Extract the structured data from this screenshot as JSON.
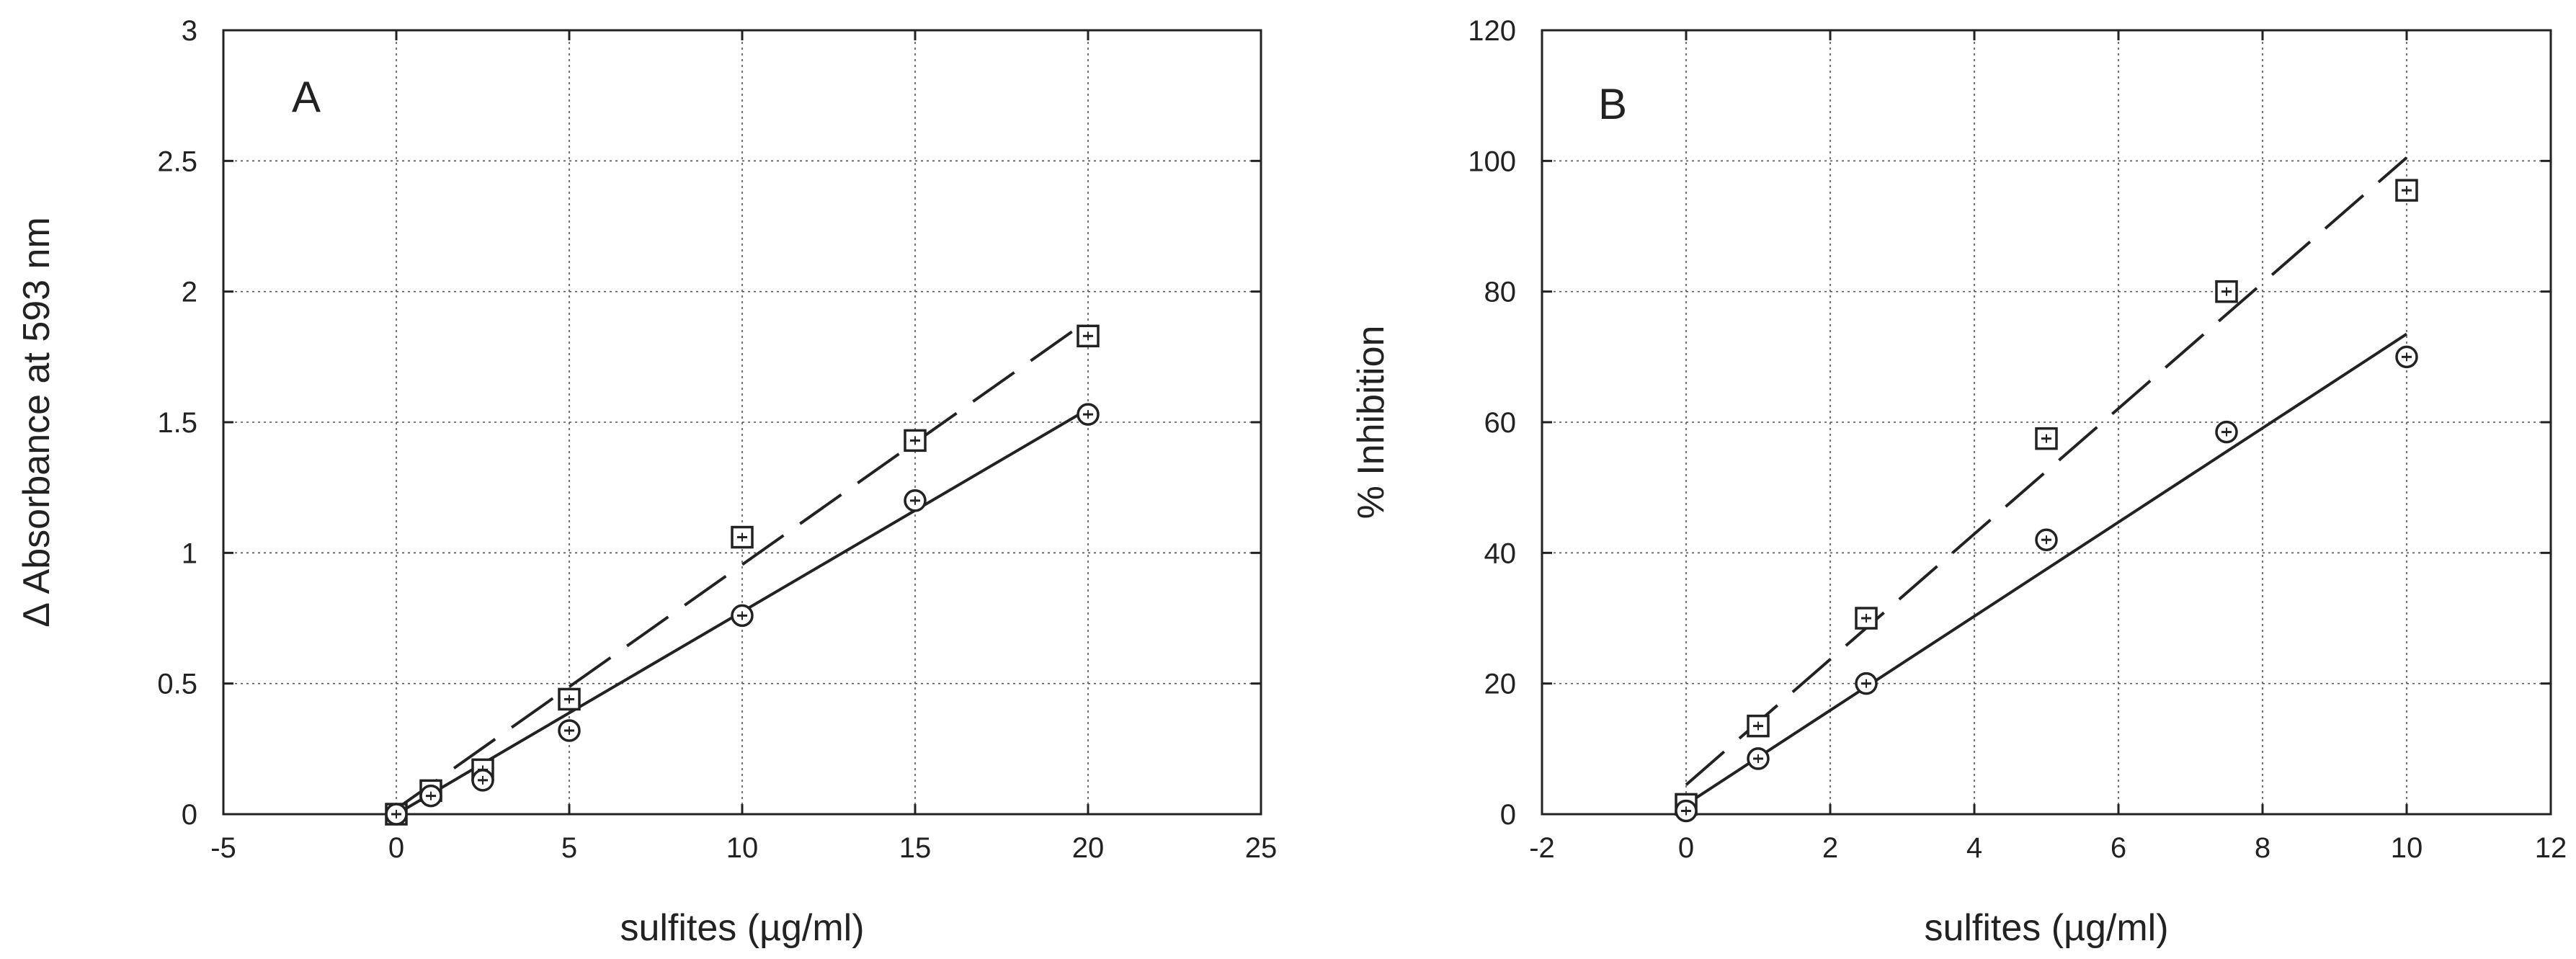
{
  "chart_data": [
    {
      "type": "scatter",
      "panel_label": "A",
      "xlabel": "sulfites (µg/ml)",
      "ylabel": "Δ Absorbance at 593 nm",
      "xlim": [
        -5,
        25
      ],
      "ylim": [
        0,
        3
      ],
      "xticks": [
        -5,
        0,
        5,
        10,
        15,
        20,
        25
      ],
      "yticks": [
        0,
        0.5,
        1,
        1.5,
        2,
        2.5,
        3
      ],
      "xtick_labels": [
        "-5",
        "0",
        "5",
        "10",
        "15",
        "20",
        "25"
      ],
      "ytick_labels": [
        "0",
        "0.5",
        "1",
        "1.5",
        "2",
        "2.5",
        "3"
      ],
      "grid": true,
      "series": [
        {
          "name": "squares",
          "marker": "square",
          "x": [
            0,
            1,
            2.5,
            5,
            10,
            15,
            20
          ],
          "values": [
            0,
            0.09,
            0.17,
            0.44,
            1.06,
            1.43,
            1.83
          ],
          "fit": {
            "style": "dashed",
            "x": [
              0,
              20
            ],
            "y": [
              0.02,
              1.89
            ]
          }
        },
        {
          "name": "circles",
          "marker": "circle",
          "x": [
            0,
            1,
            2.5,
            5,
            10,
            15,
            20
          ],
          "values": [
            0,
            0.07,
            0.13,
            0.32,
            0.76,
            1.2,
            1.53
          ],
          "fit": {
            "style": "solid",
            "x": [
              0,
              20
            ],
            "y": [
              0.0,
              1.55
            ]
          }
        }
      ]
    },
    {
      "type": "scatter",
      "panel_label": "B",
      "xlabel": "sulfites (µg/ml)",
      "ylabel": "% Inhibition",
      "xlim": [
        -2,
        12
      ],
      "ylim": [
        0,
        120
      ],
      "xticks": [
        -2,
        0,
        2,
        4,
        6,
        8,
        10,
        12
      ],
      "yticks": [
        0,
        20,
        40,
        60,
        80,
        100,
        120
      ],
      "xtick_labels": [
        "-2",
        "0",
        "2",
        "4",
        "6",
        "8",
        "10",
        "12"
      ],
      "ytick_labels": [
        "0",
        "20",
        "40",
        "60",
        "80",
        "100",
        "120"
      ],
      "grid": true,
      "series": [
        {
          "name": "squares",
          "marker": "square",
          "x": [
            0,
            1,
            2.5,
            5,
            7.5,
            10
          ],
          "values": [
            1.5,
            13.5,
            30,
            57.5,
            80,
            95.5
          ],
          "fit": {
            "style": "dashed",
            "x": [
              0,
              10
            ],
            "y": [
              4.5,
              100.5
            ]
          }
        },
        {
          "name": "circles",
          "marker": "circle",
          "x": [
            0,
            1,
            2.5,
            5,
            7.5,
            10
          ],
          "values": [
            0.5,
            8.5,
            20,
            42,
            58.5,
            70
          ],
          "fit": {
            "style": "solid",
            "x": [
              0,
              10
            ],
            "y": [
              1.5,
              73.5
            ]
          }
        }
      ]
    }
  ]
}
